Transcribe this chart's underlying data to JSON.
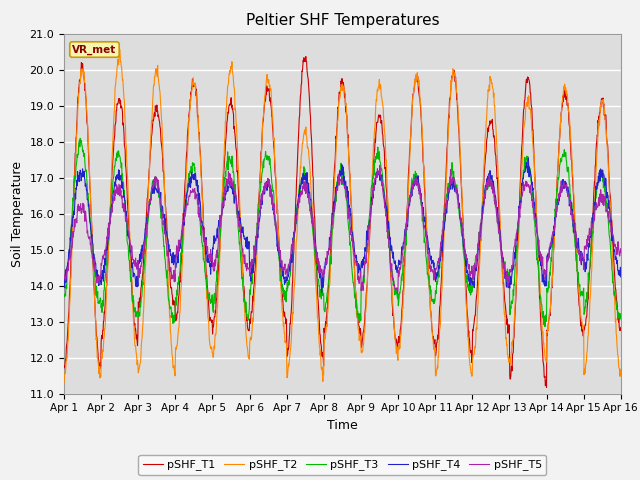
{
  "title": "Peltier SHF Temperatures",
  "xlabel": "Time",
  "ylabel": "Soil Temperature",
  "xlim": [
    0,
    15
  ],
  "ylim": [
    11.0,
    21.0
  ],
  "yticks": [
    11.0,
    12.0,
    13.0,
    14.0,
    15.0,
    16.0,
    17.0,
    18.0,
    19.0,
    20.0,
    21.0
  ],
  "xtick_labels": [
    "Apr 1",
    "Apr 2",
    "Apr 3",
    "Apr 4",
    "Apr 5",
    "Apr 6",
    "Apr 7",
    "Apr 8",
    "Apr 9",
    "Apr 10",
    "Apr 11",
    "Apr 12",
    "Apr 13",
    "Apr 14",
    "Apr 15",
    "Apr 16"
  ],
  "series_colors": [
    "#cc0000",
    "#ff8800",
    "#00bb00",
    "#2222cc",
    "#aa22aa"
  ],
  "series_names": [
    "pSHF_T1",
    "pSHF_T2",
    "pSHF_T3",
    "pSHF_T4",
    "pSHF_T5"
  ],
  "vr_met_label": "VR_met",
  "background_color": "#dddddd",
  "grid_color": "#ffffff",
  "n_days": 15,
  "points_per_day": 96,
  "title_fontsize": 11,
  "label_fontsize": 9,
  "tick_fontsize": 8
}
